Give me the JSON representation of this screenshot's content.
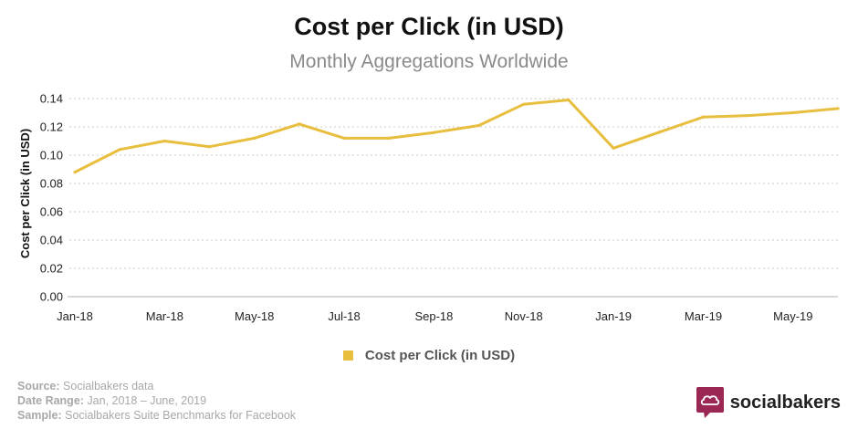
{
  "chart_data": {
    "type": "line",
    "title": "Cost per Click (in USD)",
    "subtitle": "Monthly Aggregations Worldwide",
    "xlabel": "",
    "ylabel": "Cost per Click (in USD)",
    "ylim": [
      0,
      0.14
    ],
    "yticks": [
      0.0,
      0.02,
      0.04,
      0.06,
      0.08,
      0.1,
      0.12,
      0.14
    ],
    "ytick_labels": [
      "0.00",
      "0.02",
      "0.04",
      "0.06",
      "0.08",
      "0.10",
      "0.12",
      "0.14"
    ],
    "x": [
      "Jan-18",
      "Feb-18",
      "Mar-18",
      "Apr-18",
      "May-18",
      "Jun-18",
      "Jul-18",
      "Aug-18",
      "Sep-18",
      "Oct-18",
      "Nov-18",
      "Dec-18",
      "Jan-19",
      "Feb-19",
      "Mar-19",
      "Apr-19",
      "May-19",
      "Jun-19"
    ],
    "xtick_labels": [
      "Jan-18",
      "Mar-18",
      "May-18",
      "Jul-18",
      "Sep-18",
      "Nov-18",
      "Jan-19",
      "Mar-19",
      "May-19"
    ],
    "series": [
      {
        "name": "Cost per Click (in USD)",
        "color": "#e8be3e",
        "values": [
          0.088,
          0.104,
          0.11,
          0.106,
          0.112,
          0.122,
          0.112,
          0.112,
          0.116,
          0.121,
          0.136,
          0.139,
          0.105,
          0.116,
          0.127,
          0.128,
          0.13,
          0.133
        ]
      }
    ],
    "grid": true,
    "legend": "bottom-center"
  },
  "legend": {
    "label": "Cost per Click (in USD)",
    "color": "#e8be3e"
  },
  "footer": {
    "source_label": "Source:",
    "source_value": "Socialbakers data",
    "date_label": "Date Range:",
    "date_value": "Jan, 2018 – June, 2019",
    "sample_label": "Sample:",
    "sample_value": "Socialbakers Suite Benchmarks for Facebook"
  },
  "brand": {
    "name": "socialbakers",
    "icon": "socialbakers-logo-icon",
    "color": "#9b2755"
  }
}
